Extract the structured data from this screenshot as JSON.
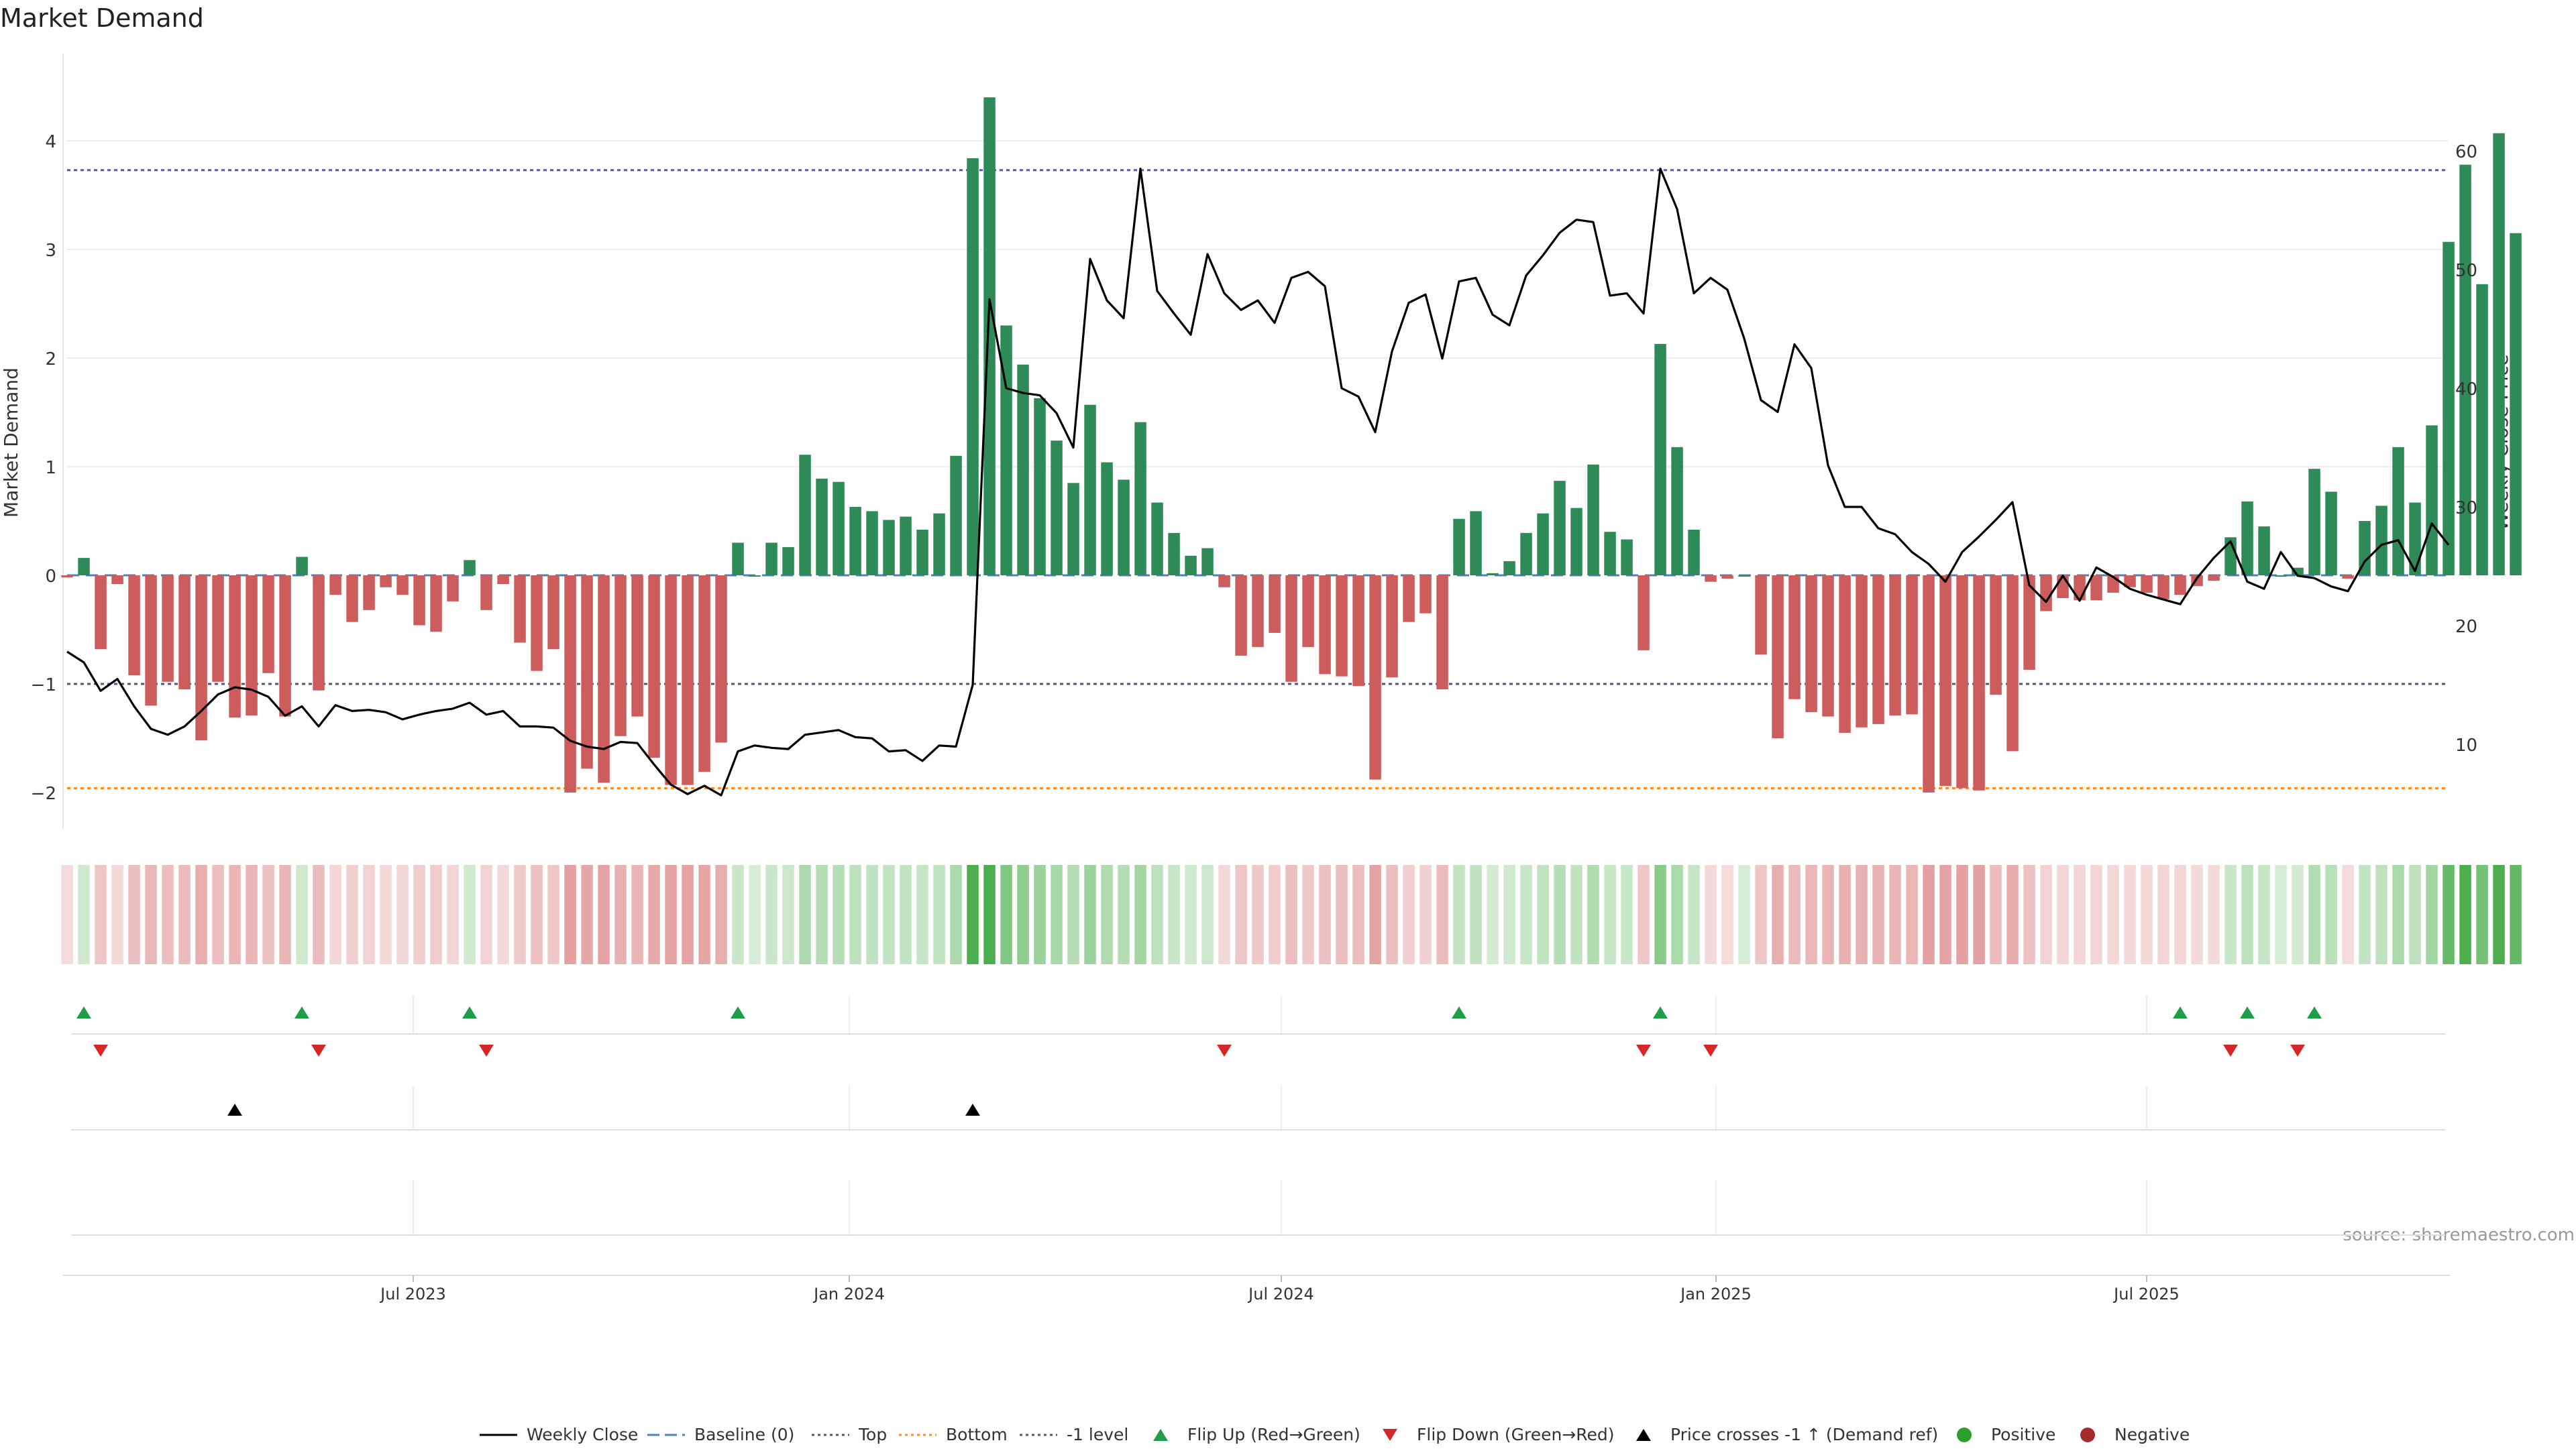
{
  "chart_data": {
    "type": "bar",
    "title": "Market Demand",
    "ylabel_left": "Market Demand",
    "ylabel_right": "Weekly Close Price",
    "source": "source: sharemaestro.com",
    "x_ticks": [
      "Jul 2023",
      "Jan 2024",
      "Jul 2024",
      "Jan 2025",
      "Jul 2025"
    ],
    "y_left_ticks": [
      "4",
      "3",
      "2",
      "1",
      "0",
      "−1",
      "−2"
    ],
    "y_right_ticks": [
      "60",
      "50",
      "40",
      "30",
      "20",
      "10"
    ],
    "ylim_left": [
      -2.35,
      4.5
    ],
    "ylim_right": [
      4.7,
      67
    ],
    "levels": {
      "top": 3.73,
      "minus1": -1.0,
      "bottom": -1.96,
      "baseline": 0
    },
    "demand": [
      -0.02,
      0.16,
      -0.68,
      -0.08,
      -0.92,
      -1.2,
      -0.98,
      -1.05,
      -1.52,
      -0.98,
      -1.31,
      -1.29,
      -0.9,
      -1.3,
      0.17,
      -1.06,
      -0.18,
      -0.43,
      -0.32,
      -0.11,
      -0.18,
      -0.46,
      -0.52,
      -0.24,
      0.14,
      -0.32,
      -0.08,
      -0.62,
      -0.88,
      -0.68,
      -2.0,
      -1.78,
      -1.91,
      -1.48,
      -1.3,
      -1.68,
      -1.93,
      -1.93,
      -1.81,
      -1.54,
      0.3,
      0.0,
      0.3,
      0.26,
      1.11,
      0.89,
      0.86,
      0.63,
      0.59,
      0.51,
      0.54,
      0.42,
      0.57,
      1.1,
      3.84,
      4.4,
      2.3,
      1.94,
      1.63,
      1.24,
      0.85,
      1.57,
      1.04,
      0.88,
      1.41,
      0.67,
      0.39,
      0.18,
      0.25,
      -0.11,
      -0.74,
      -0.66,
      -0.53,
      -0.98,
      -0.66,
      -0.91,
      -0.93,
      -1.02,
      -1.88,
      -0.94,
      -0.43,
      -0.35,
      -1.05,
      0.52,
      0.59,
      0.02,
      0.13,
      0.39,
      0.57,
      0.87,
      0.62,
      1.02,
      0.4,
      0.33,
      -0.69,
      2.13,
      1.18,
      0.42,
      -0.06,
      -0.03,
      0.0,
      -0.73,
      -1.5,
      -1.14,
      -1.26,
      -1.3,
      -1.45,
      -1.4,
      -1.37,
      -1.29,
      -1.28,
      -2.0,
      -1.94,
      -1.96,
      -1.98,
      -1.1,
      -1.62,
      -0.87,
      -0.33,
      -0.21,
      -0.23,
      -0.23,
      -0.16,
      -0.11,
      -0.16,
      -0.22,
      -0.18,
      -0.1,
      -0.05,
      0.35,
      0.68,
      0.45,
      0.0,
      0.07,
      0.98,
      0.77,
      -0.03,
      0.5,
      0.64,
      1.18,
      0.67,
      1.38,
      3.07,
      3.78,
      2.68,
      4.07,
      3.15
    ],
    "price": [
      17.8,
      16.9,
      14.5,
      15.5,
      13.2,
      11.3,
      10.8,
      11.5,
      12.8,
      14.2,
      14.8,
      14.6,
      14.0,
      12.4,
      13.2,
      11.5,
      13.3,
      12.8,
      12.9,
      12.7,
      12.1,
      12.5,
      12.8,
      13.0,
      13.5,
      12.5,
      12.8,
      11.5,
      11.5,
      11.4,
      10.3,
      9.8,
      9.6,
      10.2,
      10.1,
      8.3,
      6.6,
      5.8,
      6.5,
      5.7,
      9.4,
      9.9,
      9.7,
      9.6,
      10.8,
      11.0,
      11.2,
      10.6,
      10.5,
      9.4,
      9.5,
      8.6,
      9.9,
      9.8,
      15.0,
      47.5,
      40.0,
      39.6,
      39.4,
      37.9,
      35.0,
      50.9,
      47.4,
      45.9,
      58.5,
      48.2,
      46.3,
      44.5,
      51.3,
      48.0,
      46.6,
      47.4,
      45.5,
      49.3,
      49.8,
      48.6,
      40.0,
      39.3,
      36.3,
      43.1,
      47.2,
      47.9,
      42.5,
      49.0,
      49.3,
      46.2,
      45.3,
      49.5,
      51.2,
      53.1,
      54.2,
      54.0,
      47.8,
      48.0,
      46.3,
      58.5,
      55.1,
      48.0,
      49.3,
      48.3,
      44.2,
      39.0,
      38.0,
      43.7,
      41.7,
      33.5,
      30.0,
      30.0,
      28.2,
      27.7,
      26.2,
      25.2,
      23.7,
      26.2,
      27.5,
      28.9,
      30.4,
      23.4,
      22.0,
      24.2,
      22.1,
      24.9,
      24.1,
      23.1,
      22.6,
      22.2,
      21.8,
      24.0,
      25.7,
      27.1,
      23.7,
      23.1,
      26.2,
      24.2,
      24.0,
      23.3,
      22.9,
      25.4,
      26.8,
      27.2,
      24.6,
      28.6,
      26.8
    ],
    "flips_up_at": [
      1,
      14,
      24,
      40,
      83,
      95,
      126,
      130,
      134
    ],
    "flips_down_at": [
      2,
      15,
      25,
      69,
      94,
      98,
      129,
      133
    ],
    "price_cross_at": [
      10,
      54
    ],
    "legend": [
      "Weekly Close",
      "Baseline (0)",
      "Top",
      "Bottom",
      "-1 level",
      "Flip Up (Red→Green)",
      "Flip Down (Green→Red)",
      "Price crosses -1 ↑ (Demand ref)",
      "Positive",
      "Negative"
    ],
    "colors": {
      "positive_bar": "#2e8b57",
      "negative_bar": "#cd5c5c",
      "price_line": "#000000",
      "baseline": "#4f81bd",
      "top_level": "#5a5a9a",
      "bottom_level": "#ff8c2a",
      "minus1_level": "#555577",
      "flip_up": "#1f9e4a",
      "flip_down": "#d62728",
      "cross": "#000000",
      "positive_dot": "#2ca02c",
      "negative_dot": "#a52a2a"
    }
  }
}
